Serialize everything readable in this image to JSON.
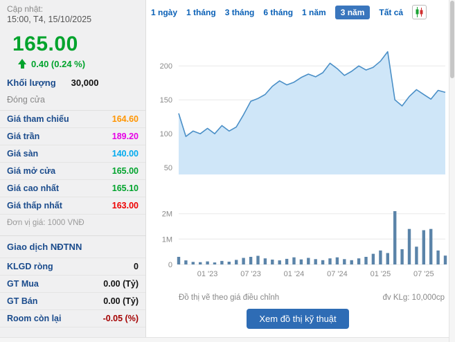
{
  "left_panel": {
    "updated_label": "Cập nhật:",
    "updated_time": "15:00, T4, 15/10/2025",
    "price": "165.00",
    "price_color": "#00a32c",
    "change": "0.40 (0.24 %)",
    "volume_label": "Khối lượng",
    "volume_value": "30,000",
    "close_label": "Đóng cửa",
    "price_table": [
      {
        "label": "Giá tham chiếu",
        "value": "164.60",
        "color": "#ff9500"
      },
      {
        "label": "Giá trần",
        "value": "189.20",
        "color": "#e600e6"
      },
      {
        "label": "Giá sàn",
        "value": "140.00",
        "color": "#00aaee"
      },
      {
        "label": "Giá mở cửa",
        "value": "165.00",
        "color": "#00a32c"
      },
      {
        "label": "Giá cao nhất",
        "value": "165.10",
        "color": "#00a32c"
      },
      {
        "label": "Giá thấp nhất",
        "value": "163.00",
        "color": "#ee0000"
      }
    ],
    "unit_note": "Đơn vị giá: 1000 VNĐ",
    "foreign_title": "Giao dịch NĐTNN",
    "foreign_rows": [
      {
        "label": "KLGD ròng",
        "value": "0",
        "color": "#111111"
      },
      {
        "label": "GT Mua",
        "value": "0.00 (Tỷ)",
        "color": "#111111"
      },
      {
        "label": "GT Bán",
        "value": "0.00 (Tỷ)",
        "color": "#111111"
      },
      {
        "label": "Room còn lại",
        "value": "-0.05 (%)",
        "color": "#a40000"
      }
    ]
  },
  "range_tabs": [
    {
      "label": "1 ngày",
      "active": false
    },
    {
      "label": "1 tháng",
      "active": false
    },
    {
      "label": "3 tháng",
      "active": false
    },
    {
      "label": "6 tháng",
      "active": false
    },
    {
      "label": "1 năm",
      "active": false
    },
    {
      "label": "3 năm",
      "active": true
    },
    {
      "label": "Tất cả",
      "active": false
    }
  ],
  "chart_icon": "candlestick-chart-icon",
  "chart_footer_left": "Đồ thị vẽ theo giá điều chỉnh",
  "chart_footer_right": "đv KLg: 10,000cp",
  "action_button": "Xem đồ thị kỹ thuật",
  "chart_data": [
    {
      "type": "area",
      "title": "Adjusted price history (3 năm)",
      "x": [
        "2022-09",
        "2022-10",
        "2022-11",
        "2022-12",
        "2023-01",
        "2023-02",
        "2023-03",
        "2023-04",
        "2023-05",
        "2023-06",
        "2023-07",
        "2023-08",
        "2023-09",
        "2023-10",
        "2023-11",
        "2023-12",
        "2024-01",
        "2024-02",
        "2024-03",
        "2024-04",
        "2024-05",
        "2024-06",
        "2024-07",
        "2024-08",
        "2024-09",
        "2024-10",
        "2024-11",
        "2024-12",
        "2025-01",
        "2025-02",
        "2025-03",
        "2025-04",
        "2025-05",
        "2025-06",
        "2025-07",
        "2025-08",
        "2025-09",
        "2025-10"
      ],
      "values": [
        130,
        96,
        104,
        100,
        108,
        100,
        112,
        104,
        110,
        128,
        148,
        152,
        158,
        170,
        178,
        172,
        176,
        183,
        188,
        184,
        190,
        204,
        196,
        186,
        192,
        200,
        194,
        198,
        207,
        221,
        150,
        141,
        155,
        165,
        158,
        151,
        164,
        161
      ],
      "ylim": [
        40,
        240
      ],
      "yticks": [
        50,
        100,
        150,
        200
      ],
      "grid": true,
      "legend": "none",
      "line_color": "#4a8fc7",
      "fill_color": "#cfe6f8"
    },
    {
      "type": "bar",
      "title": "Volume (millions of shares)",
      "x": [
        "2022-09",
        "2022-10",
        "2022-11",
        "2022-12",
        "2023-01",
        "2023-02",
        "2023-03",
        "2023-04",
        "2023-05",
        "2023-06",
        "2023-07",
        "2023-08",
        "2023-09",
        "2023-10",
        "2023-11",
        "2023-12",
        "2024-01",
        "2024-02",
        "2024-03",
        "2024-04",
        "2024-05",
        "2024-06",
        "2024-07",
        "2024-08",
        "2024-09",
        "2024-10",
        "2024-11",
        "2024-12",
        "2025-01",
        "2025-02",
        "2025-03",
        "2025-04",
        "2025-05",
        "2025-06",
        "2025-07",
        "2025-08",
        "2025-09",
        "2025-10"
      ],
      "values": [
        0.3,
        0.16,
        0.1,
        0.09,
        0.12,
        0.08,
        0.14,
        0.11,
        0.18,
        0.26,
        0.3,
        0.34,
        0.24,
        0.19,
        0.16,
        0.22,
        0.28,
        0.2,
        0.26,
        0.21,
        0.17,
        0.24,
        0.28,
        0.21,
        0.17,
        0.24,
        0.3,
        0.42,
        0.55,
        0.45,
        2.1,
        0.6,
        1.4,
        0.7,
        1.35,
        1.4,
        0.55,
        0.35
      ],
      "ylim": [
        0,
        2.4
      ],
      "yticks": [
        0,
        1,
        2
      ],
      "ytick_labels": [
        "0",
        "1M",
        "2M"
      ],
      "xtick_indices": [
        4,
        10,
        16,
        22,
        28,
        34
      ],
      "xtick_labels": [
        "01 '23",
        "07 '23",
        "01 '24",
        "07 '24",
        "01 '25",
        "07 '25"
      ],
      "grid": true,
      "bar_color": "#5b84a9"
    }
  ]
}
